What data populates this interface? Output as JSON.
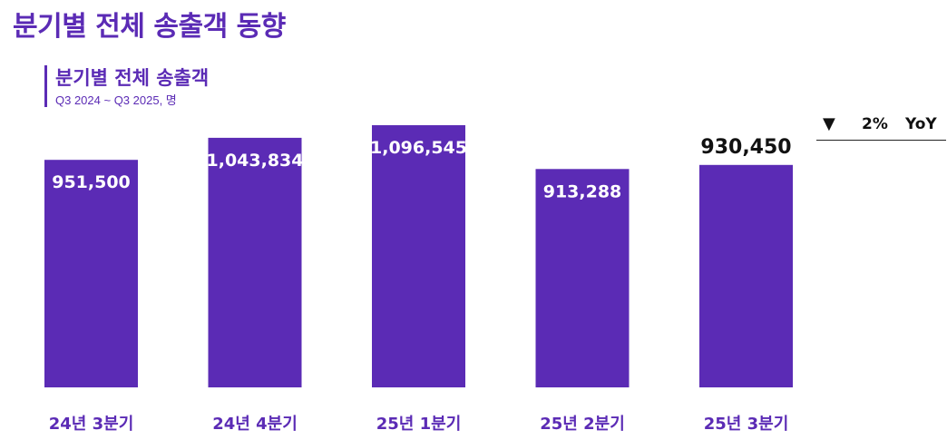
{
  "page": {
    "title": "분기별 전체 송출객 동향"
  },
  "colors": {
    "bar": "#5b2bb5",
    "title": "#5b2bb5",
    "label_inside": "#ffffff",
    "label_highlight": "#111111"
  },
  "chart_data": {
    "type": "bar",
    "title": "분기별 전체 송출객",
    "subtitle": "Q3 2024 ~ Q3 2025, 명",
    "categories": [
      "24년 3분기",
      "24년 4분기",
      "25년 1분기",
      "25년 2분기",
      "25년 3분기"
    ],
    "values": [
      951500,
      1043834,
      1096545,
      913288,
      930450
    ],
    "value_labels": [
      "951,500",
      "1,043,834",
      "1,096,545",
      "913,288",
      "930,450"
    ],
    "highlight_index": 4,
    "grid": false,
    "legend": false,
    "yoy": {
      "arrow": "▼",
      "value": "2%",
      "label": "YoY"
    }
  }
}
